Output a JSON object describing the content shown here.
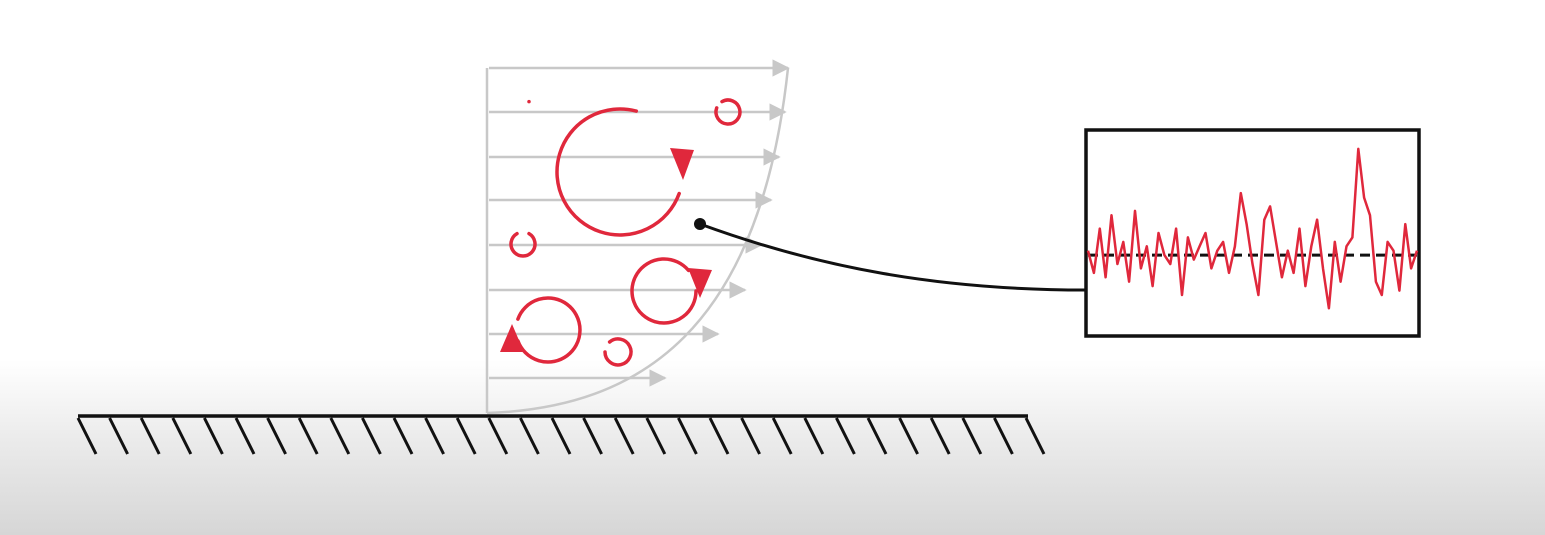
{
  "diagram": {
    "colors": {
      "eddy": "#e0283c",
      "profile": "#c8c8c8",
      "wall": "#111111",
      "signal": "#e0283c",
      "mean_line": "#111111",
      "background": "#ffffff"
    },
    "components": {
      "wall": "hatched-solid-wall",
      "velocity_profile": "turbulent-velocity-profile-arrows",
      "eddies": "rotating-eddy-arrows",
      "probe": "measurement-point",
      "leader": "probe-connector-line",
      "inset": "fluctuating-velocity-signal-inset"
    },
    "profile_arrow_count": 8,
    "eddy_count": 8,
    "signal": {
      "mean": 0,
      "values": [
        0.1,
        -0.4,
        0.6,
        -0.5,
        0.9,
        -0.2,
        0.3,
        -0.6,
        1.0,
        -0.3,
        0.2,
        -0.7,
        0.5,
        0.0,
        -0.2,
        0.6,
        -0.9,
        0.4,
        -0.1,
        0.2,
        0.5,
        -0.3,
        0.1,
        0.3,
        -0.4,
        0.2,
        1.4,
        0.7,
        -0.2,
        -0.9,
        0.8,
        1.1,
        0.3,
        -0.5,
        0.1,
        -0.4,
        0.6,
        -0.7,
        0.2,
        0.8,
        -0.3,
        -1.2,
        0.3,
        -0.6,
        0.2,
        0.4,
        2.4,
        1.3,
        0.9,
        -0.6,
        -0.9,
        0.3,
        0.1,
        -0.8,
        0.7,
        -0.3,
        0.1
      ],
      "range": [
        -1.6,
        2.6
      ]
    }
  }
}
